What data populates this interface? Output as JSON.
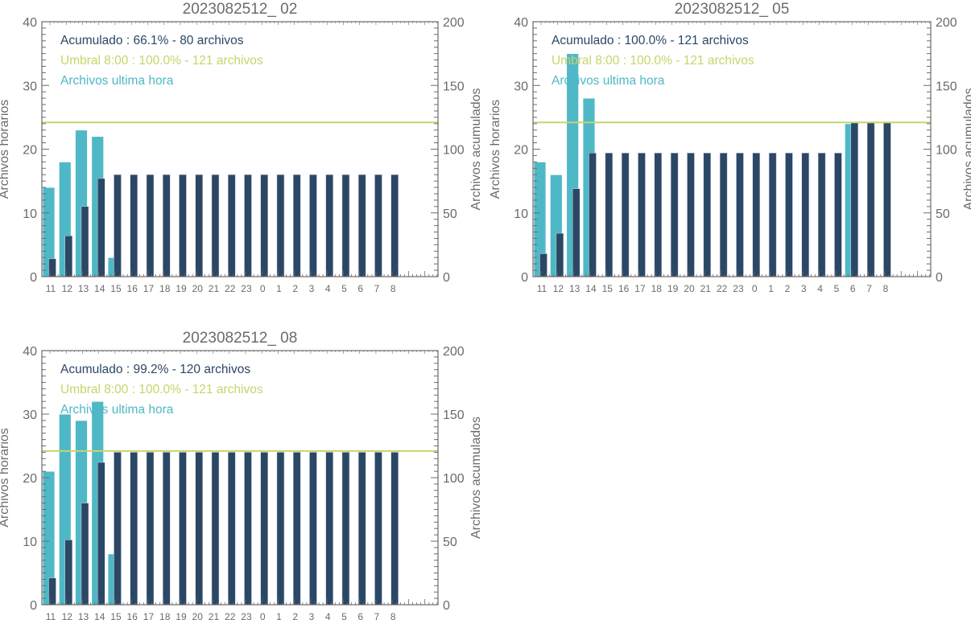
{
  "colors": {
    "hourly": "#4fb8c6",
    "cumulative": "#2b4766",
    "threshold": "#c8d46b",
    "axis": "#6b6b6b"
  },
  "chart_data": [
    {
      "type": "bar",
      "title": "2023082512_ 02",
      "ylabel": "Archivos horarios",
      "ylabel_right": "Archivos acumulados",
      "ylim": [
        0,
        40
      ],
      "ylim_right": [
        0,
        200
      ],
      "yticks": [
        "0",
        "10",
        "20",
        "30",
        "40"
      ],
      "yticks_right": [
        "0",
        "50",
        "100",
        "150",
        "200"
      ],
      "categories": [
        "11",
        "12",
        "13",
        "14",
        "15",
        "16",
        "17",
        "18",
        "19",
        "20",
        "21",
        "22",
        "23",
        "0",
        "1",
        "2",
        "3",
        "4",
        "5",
        "6",
        "7",
        "8"
      ],
      "legend": {
        "cumulative": "Acumulado : 66.1% - 80 archivos",
        "threshold": "Umbral 8:00 : 100.0% - 121 archivos",
        "hourly": "Archivos ultima hora"
      },
      "threshold": 121,
      "series": [
        {
          "name": "Archivos ultima hora",
          "axis": "left",
          "values": [
            14,
            18,
            23,
            22,
            3,
            0,
            0,
            0,
            0,
            0,
            0,
            0,
            0,
            0,
            0,
            0,
            0,
            0,
            0,
            0,
            0,
            0
          ]
        },
        {
          "name": "Acumulado",
          "axis": "right",
          "values": [
            14,
            32,
            55,
            77,
            80,
            80,
            80,
            80,
            80,
            80,
            80,
            80,
            80,
            80,
            80,
            80,
            80,
            80,
            80,
            80,
            80,
            80
          ]
        }
      ]
    },
    {
      "type": "bar",
      "title": "2023082512_ 05",
      "ylabel": "Archivos horarios",
      "ylabel_right": "Archivos acumulados",
      "ylim": [
        0,
        40
      ],
      "ylim_right": [
        0,
        200
      ],
      "yticks": [
        "0",
        "10",
        "20",
        "30",
        "40"
      ],
      "yticks_right": [
        "0",
        "50",
        "100",
        "150",
        "200"
      ],
      "categories": [
        "11",
        "12",
        "13",
        "14",
        "15",
        "16",
        "17",
        "18",
        "19",
        "20",
        "21",
        "22",
        "23",
        "0",
        "1",
        "2",
        "3",
        "4",
        "5",
        "6",
        "7",
        "8"
      ],
      "legend": {
        "cumulative": "Acumulado : 100.0% - 121 archivos",
        "threshold": "Umbral 8:00 : 100.0% - 121 archivos",
        "hourly": "Archivos ultima hora"
      },
      "threshold": 121,
      "series": [
        {
          "name": "Archivos ultima hora",
          "axis": "left",
          "values": [
            18,
            16,
            35,
            28,
            0,
            0,
            0,
            0,
            0,
            0,
            0,
            0,
            0,
            0,
            0,
            0,
            0,
            0,
            0,
            24,
            0,
            0
          ]
        },
        {
          "name": "Acumulado",
          "axis": "right",
          "values": [
            18,
            34,
            69,
            97,
            97,
            97,
            97,
            97,
            97,
            97,
            97,
            97,
            97,
            97,
            97,
            97,
            97,
            97,
            97,
            121,
            121,
            121
          ]
        }
      ]
    },
    {
      "type": "bar",
      "title": "2023082512_ 08",
      "ylabel": "Archivos horarios",
      "ylabel_right": "Archivos acumulados",
      "ylim": [
        0,
        40
      ],
      "ylim_right": [
        0,
        200
      ],
      "yticks": [
        "0",
        "10",
        "20",
        "30",
        "40"
      ],
      "yticks_right": [
        "0",
        "50",
        "100",
        "150",
        "200"
      ],
      "categories": [
        "11",
        "12",
        "13",
        "14",
        "15",
        "16",
        "17",
        "18",
        "19",
        "20",
        "21",
        "22",
        "23",
        "0",
        "1",
        "2",
        "3",
        "4",
        "5",
        "6",
        "7",
        "8"
      ],
      "legend": {
        "cumulative": "Acumulado : 99.2% - 120 archivos",
        "threshold": "Umbral 8:00 : 100.0% - 121 archivos",
        "hourly": "Archivos ultima hora"
      },
      "threshold": 121,
      "series": [
        {
          "name": "Archivos ultima hora",
          "axis": "left",
          "values": [
            21,
            30,
            29,
            32,
            8,
            0,
            0,
            0,
            0,
            0,
            0,
            0,
            0,
            0,
            0,
            0,
            0,
            0,
            0,
            0,
            0,
            0
          ]
        },
        {
          "name": "Acumulado",
          "axis": "right",
          "values": [
            21,
            51,
            80,
            112,
            120,
            120,
            120,
            120,
            120,
            120,
            120,
            120,
            120,
            120,
            120,
            120,
            120,
            120,
            120,
            120,
            120,
            120
          ]
        }
      ]
    }
  ]
}
